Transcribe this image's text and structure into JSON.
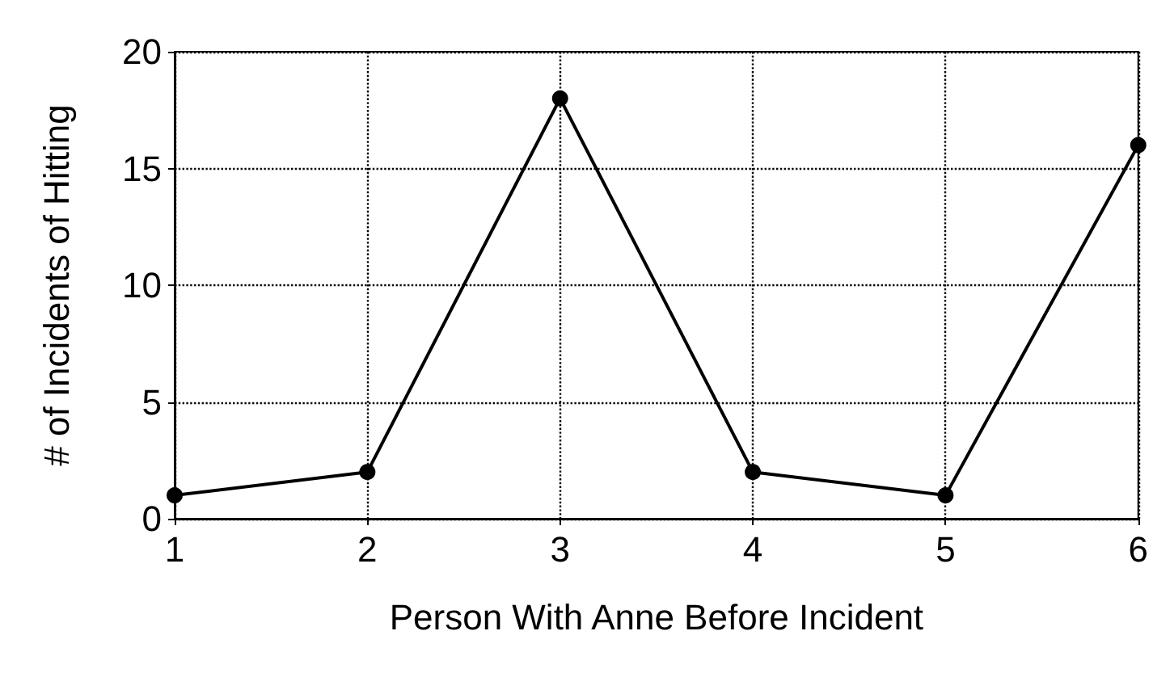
{
  "chart_data": {
    "type": "line",
    "xlabel": "Person With Anne Before Incident",
    "ylabel": "# of Incidents of Hitting",
    "x": [
      1,
      2,
      3,
      4,
      5,
      6
    ],
    "series": [
      {
        "color": "#000000",
        "values": [
          1,
          2,
          18,
          2,
          1,
          16
        ]
      }
    ],
    "xlim": [
      1,
      6
    ],
    "xticks": [
      1,
      2,
      3,
      4,
      5,
      6
    ],
    "ylim": [
      0,
      20
    ],
    "yticks": [
      0,
      5,
      10,
      15,
      20
    ],
    "grid": true,
    "marker": "circle",
    "line_style": "solid"
  }
}
